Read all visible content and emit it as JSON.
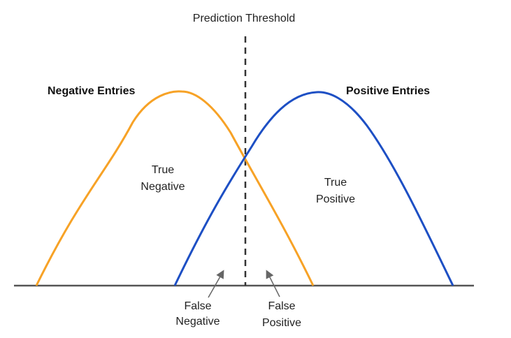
{
  "threshold_label": "Prediction Threshold",
  "negative_title": "Negative Entries",
  "positive_title": "Positive Entries",
  "true_negative": {
    "line1": "True",
    "line2": "Negative"
  },
  "true_positive": {
    "line1": "True",
    "line2": "Positive"
  },
  "false_negative": {
    "line1": "False",
    "line2": "Negative"
  },
  "false_positive": {
    "line1": "False",
    "line2": "Positive"
  },
  "colors": {
    "negative_curve": "#f7a226",
    "positive_curve": "#1d4fc4",
    "baseline": "#555555",
    "threshold": "#333333",
    "arrow": "#666666"
  }
}
